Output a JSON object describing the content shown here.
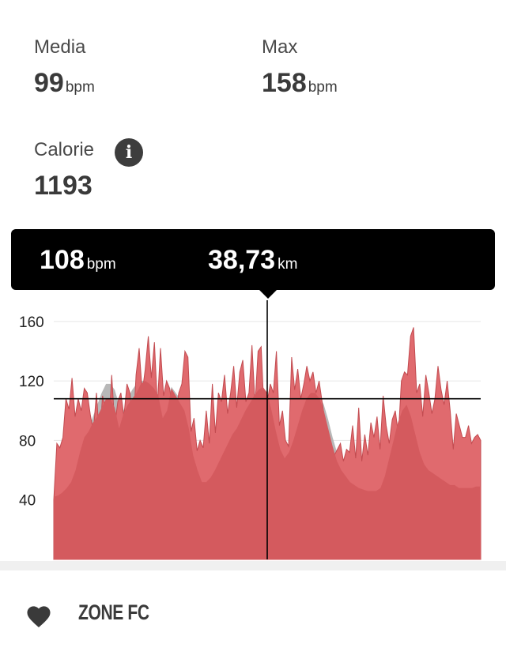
{
  "stats": {
    "average": {
      "label": "Media",
      "value": "99",
      "unit": "bpm"
    },
    "max": {
      "label": "Max",
      "value": "158",
      "unit": "bpm"
    },
    "calories": {
      "label": "Calorie",
      "value": "1193",
      "info_icon": "info-icon"
    }
  },
  "tooltip": {
    "heart_rate": {
      "value": "108",
      "unit": "bpm"
    },
    "distance": {
      "value": "38,73",
      "unit": "km"
    }
  },
  "chart_data": {
    "type": "area",
    "y_ticks": [
      "160",
      "120",
      "80",
      "40"
    ],
    "ylim": [
      0,
      170
    ],
    "cursor_x_fraction": 0.5,
    "cursor_y_value": 108,
    "colors": {
      "hr": "#e06a6e",
      "elevation": "#d45a5e",
      "comparison": "#b8b8b8"
    },
    "series": [
      {
        "values": [
          40,
          78,
          75,
          82,
          108,
          101,
          122,
          96,
          108,
          100,
          115,
          112,
          97,
          86,
          112,
          80,
          110,
          100,
          86,
          124,
          90,
          106,
          112,
          96,
          118,
          112,
          86,
          124,
          142,
          112,
          128,
          150,
          122,
          146,
          104,
          142,
          110,
          120,
          115,
          100,
          98,
          112,
          118,
          140,
          136,
          86,
          95,
          73,
          80,
          75,
          100,
          78,
          118,
          85,
          112,
          106,
          124,
          98,
          112,
          130,
          102,
          126,
          134,
          106,
          112,
          144,
          104,
          140,
          143,
          98,
          106,
          118,
          112,
          140,
          90,
          100,
          80,
          76,
          136,
          114,
          128,
          108,
          118,
          130,
          120,
          126,
          112,
          120,
          106,
          92,
          80,
          77,
          70,
          74,
          78,
          66,
          74,
          72,
          90,
          68,
          102,
          66,
          84,
          70,
          92,
          82,
          96,
          74,
          110,
          90,
          78,
          94,
          100,
          84,
          120,
          126,
          124,
          150,
          156,
          112,
          118,
          96,
          124,
          112,
          98,
          108,
          130,
          114,
          104,
          120,
          100,
          74,
          98,
          90,
          82,
          82,
          90,
          78,
          82,
          84,
          80
        ]
      },
      {
        "values": [
          42,
          43,
          45,
          48,
          52,
          60,
          72,
          82,
          86,
          92,
          96,
          102,
          108,
          108,
          102,
          88,
          98,
          104,
          108,
          112,
          118,
          120,
          118,
          115,
          110,
          95,
          100,
          115,
          110,
          105,
          100,
          88,
          70,
          60,
          52,
          52,
          55,
          60,
          66,
          72,
          78,
          84,
          88,
          94,
          100,
          105,
          110,
          114,
          116,
          112,
          100,
          86,
          74,
          68,
          72,
          80,
          90,
          100,
          108,
          112,
          112,
          108,
          100,
          88,
          76,
          66,
          60,
          56,
          52,
          50,
          48,
          47,
          46,
          46,
          46,
          48,
          56,
          68,
          80,
          92,
          100,
          104,
          96,
          84,
          72,
          64,
          60,
          58,
          56,
          54,
          52,
          50,
          50,
          48,
          48,
          48,
          48,
          49,
          49
        ]
      },
      {
        "values": [
          40,
          41,
          42,
          44,
          48,
          56,
          68,
          80,
          88,
          96,
          104,
          112,
          118,
          118,
          114,
          104,
          100,
          108,
          114,
          118,
          120,
          120,
          118,
          114,
          108,
          98,
          104,
          116,
          112,
          108,
          104,
          96,
          84,
          74,
          70,
          68,
          70,
          74,
          78,
          82,
          86,
          90,
          94,
          98,
          102,
          106,
          110,
          112,
          112,
          108,
          100,
          90,
          82,
          76,
          78,
          84,
          92,
          100,
          106,
          110,
          112,
          110,
          104,
          94,
          82,
          72,
          66,
          62,
          60,
          58,
          56,
          55,
          54,
          54,
          54,
          56,
          60,
          68,
          78,
          88,
          96,
          100,
          96,
          88,
          78,
          70,
          66,
          64,
          62,
          60,
          58,
          56,
          55,
          54,
          54,
          54,
          55,
          56,
          56
        ]
      }
    ]
  },
  "zone": {
    "label": "ZONE FC",
    "icon": "heart-icon"
  }
}
